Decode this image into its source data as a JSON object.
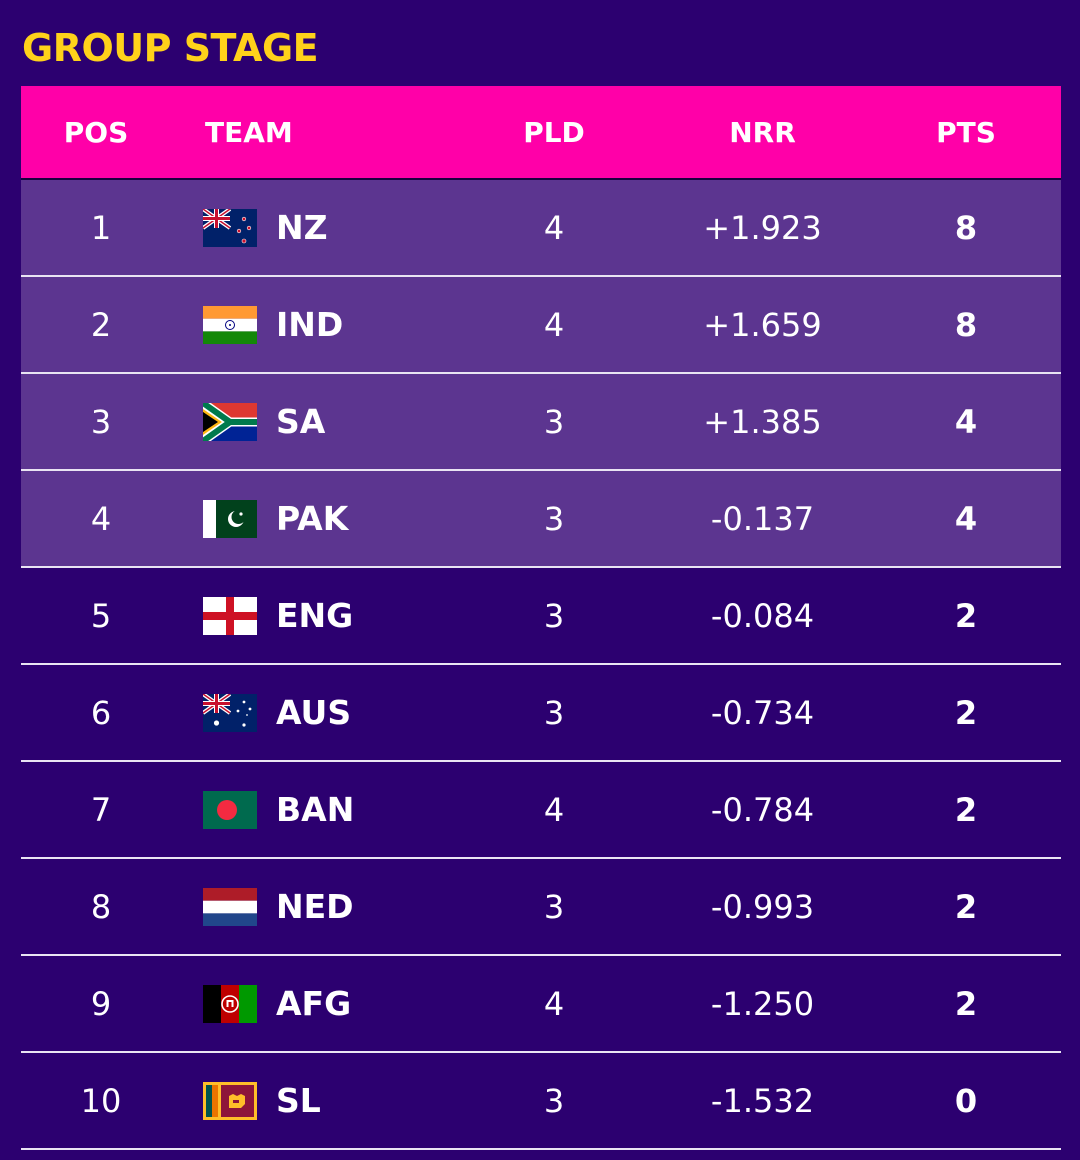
{
  "page": {
    "title": "GROUP STAGE"
  },
  "table": {
    "headers": {
      "pos": "POS",
      "team": "TEAM",
      "pld": "PLD",
      "nrr": "NRR",
      "pts": "PTS"
    },
    "rows": [
      {
        "pos": "1",
        "team": "NZ",
        "flag": "new-zealand-flag",
        "pld": "4",
        "nrr": "+1.923",
        "pts": "8"
      },
      {
        "pos": "2",
        "team": "IND",
        "flag": "india-flag",
        "pld": "4",
        "nrr": "+1.659",
        "pts": "8"
      },
      {
        "pos": "3",
        "team": "SA",
        "flag": "south-africa-flag",
        "pld": "3",
        "nrr": "+1.385",
        "pts": "4"
      },
      {
        "pos": "4",
        "team": "PAK",
        "flag": "pakistan-flag",
        "pld": "3",
        "nrr": "-0.137",
        "pts": "4"
      },
      {
        "pos": "5",
        "team": "ENG",
        "flag": "england-flag",
        "pld": "3",
        "nrr": "-0.084",
        "pts": "2"
      },
      {
        "pos": "6",
        "team": "AUS",
        "flag": "australia-flag",
        "pld": "3",
        "nrr": "-0.734",
        "pts": "2"
      },
      {
        "pos": "7",
        "team": "BAN",
        "flag": "bangladesh-flag",
        "pld": "4",
        "nrr": "-0.784",
        "pts": "2"
      },
      {
        "pos": "8",
        "team": "NED",
        "flag": "netherlands-flag",
        "pld": "3",
        "nrr": "-0.993",
        "pts": "2"
      },
      {
        "pos": "9",
        "team": "AFG",
        "flag": "afghanistan-flag",
        "pld": "4",
        "nrr": "-1.250",
        "pts": "2"
      },
      {
        "pos": "10",
        "team": "SL",
        "flag": "sri-lanka-flag",
        "pld": "3",
        "nrr": "-1.532",
        "pts": "0"
      }
    ]
  },
  "colors": {
    "background": "#2c0070",
    "header_bg": "#ff00a8",
    "qualified_row_bg": "#5c3590",
    "title": "#ffd21a"
  }
}
